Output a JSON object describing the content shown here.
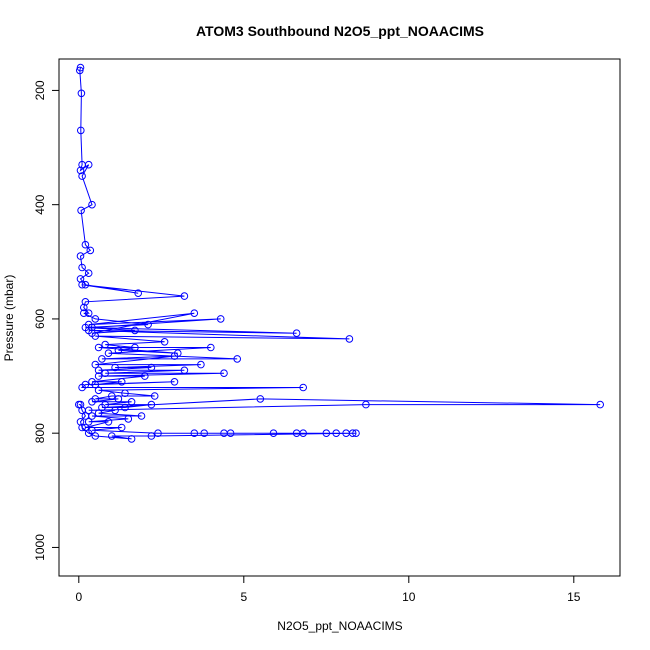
{
  "chart_data": {
    "type": "scatter",
    "title": "ATOM3 Southbound N2O5_ppt_NOAACIMS",
    "xlabel": "N2O5_ppt_NOAACIMS",
    "ylabel": "Pressure (mbar)",
    "xlim": [
      -0.6,
      16.4
    ],
    "ylim": [
      1050,
      145
    ],
    "y_reversed": true,
    "grid": false,
    "legend": "none",
    "series_color": "#0000FF",
    "marker": "open-circle",
    "connected": true,
    "x_ticks": [
      {
        "value": 0,
        "label": "0"
      },
      {
        "value": 5,
        "label": "5"
      },
      {
        "value": 10,
        "label": "10"
      },
      {
        "value": 15,
        "label": "15"
      }
    ],
    "y_ticks": [
      {
        "value": 200,
        "label": "200"
      },
      {
        "value": 400,
        "label": "400"
      },
      {
        "value": 600,
        "label": "600"
      },
      {
        "value": 800,
        "label": "800"
      },
      {
        "value": 1000,
        "label": "1000"
      }
    ],
    "series": [
      {
        "x": [
          0.05,
          0.03,
          0.08,
          0.06,
          0.1,
          0.05,
          0.3,
          0.1,
          0.4,
          0.07,
          0.2,
          0.35,
          0.05,
          0.1,
          0.3,
          0.05,
          0.2,
          1.8,
          0.1,
          3.2,
          0.2,
          0.15,
          0.3,
          0.15,
          0.5,
          2.1,
          0.2,
          1.7,
          0.4,
          3.5,
          0.3,
          4.3,
          0.4,
          6.6,
          0.3,
          8.2,
          0.5,
          2.6,
          0.8,
          1.7,
          1.2,
          3.0,
          0.6,
          4.0,
          0.9,
          4.8,
          0.7,
          2.9,
          0.5,
          3.7,
          1.1,
          2.2,
          0.6,
          3.2,
          0.8,
          4.4,
          0.6,
          2.0,
          0.4,
          1.3,
          0.5,
          2.9,
          0.2,
          0.1,
          6.8,
          0.6,
          1.4,
          2.3,
          1.0,
          0.5,
          1.2,
          0.4,
          1.6,
          0.8,
          2.2,
          1.4,
          0.7,
          5.5,
          15.8,
          8.7,
          0.3,
          1.1,
          0.6,
          1.9,
          0.4,
          1.5,
          0.3,
          0.9,
          0.2,
          1.3,
          0.4,
          2.4,
          3.5,
          3.8,
          4.4,
          4.6,
          5.9,
          6.6,
          6.8,
          7.5,
          7.8,
          8.1,
          8.3,
          8.4,
          2.2,
          1.0,
          1.6,
          0.5,
          0.3,
          0.1,
          0.05,
          0.2,
          0.1,
          0.05,
          0.0
        ],
        "y": [
          160,
          165,
          205,
          270,
          330,
          340,
          330,
          350,
          400,
          410,
          470,
          480,
          490,
          510,
          520,
          530,
          540,
          555,
          540,
          560,
          570,
          580,
          590,
          590,
          600,
          610,
          615,
          620,
          625,
          590,
          610,
          600,
          615,
          625,
          620,
          635,
          630,
          640,
          645,
          650,
          655,
          660,
          650,
          650,
          660,
          670,
          670,
          665,
          680,
          680,
          685,
          685,
          690,
          690,
          695,
          695,
          700,
          700,
          710,
          710,
          715,
          710,
          715,
          720,
          720,
          725,
          730,
          735,
          735,
          740,
          740,
          745,
          745,
          750,
          750,
          755,
          755,
          740,
          750,
          750,
          760,
          760,
          765,
          770,
          770,
          775,
          780,
          780,
          790,
          790,
          795,
          800,
          800,
          800,
          800,
          800,
          800,
          800,
          800,
          800,
          800,
          800,
          800,
          800,
          805,
          805,
          810,
          805,
          800,
          790,
          780,
          770,
          760,
          750,
          750
        ]
      }
    ]
  }
}
